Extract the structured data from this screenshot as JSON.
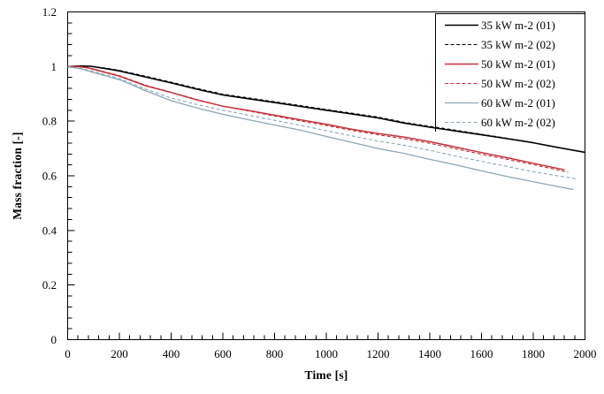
{
  "figure": {
    "background": "#ffffff",
    "frame_color": "#000000",
    "tick_color": "#000000",
    "text_color": "#000000"
  },
  "chart_data": {
    "type": "line",
    "title": "",
    "xlabel": "Time [s]",
    "ylabel": "Mass fraction [-]",
    "xlim": [
      0,
      2000
    ],
    "ylim": [
      0,
      1.2
    ],
    "x_major_tick_step": 200,
    "x_minor_tick_step": 40,
    "y_major_tick_step": 0.2,
    "y_minor_tick_step": 0.04,
    "x_tick_labels": [
      "0",
      "200",
      "400",
      "600",
      "800",
      "1000",
      "1200",
      "1400",
      "1600",
      "1800",
      "2000"
    ],
    "y_tick_labels": [
      "0",
      "0.2",
      "0.4",
      "0.6",
      "0.8",
      "1",
      "1.2"
    ],
    "grid": "off",
    "legend_position": "top-right-inside",
    "series": [
      {
        "name": "35 kW m-2 (01)",
        "color": "#000000",
        "style": "solid",
        "width": 1.6,
        "points": [
          [
            0,
            0.999
          ],
          [
            40,
            1.002
          ],
          [
            90,
            1.001
          ],
          [
            150,
            0.992
          ],
          [
            200,
            0.984
          ],
          [
            300,
            0.962
          ],
          [
            400,
            0.94
          ],
          [
            500,
            0.917
          ],
          [
            600,
            0.896
          ],
          [
            700,
            0.882
          ],
          [
            800,
            0.868
          ],
          [
            900,
            0.854
          ],
          [
            1000,
            0.84
          ],
          [
            1100,
            0.826
          ],
          [
            1200,
            0.812
          ],
          [
            1300,
            0.793
          ],
          [
            1400,
            0.778
          ],
          [
            1500,
            0.764
          ],
          [
            1600,
            0.75
          ],
          [
            1700,
            0.736
          ],
          [
            1800,
            0.721
          ],
          [
            1900,
            0.703
          ],
          [
            2000,
            0.686
          ]
        ]
      },
      {
        "name": "35 kW m-2 (02)",
        "color": "#000000",
        "style": "dashed",
        "width": 1.1,
        "points": [
          [
            0,
            0.999
          ],
          [
            40,
            1.001
          ],
          [
            90,
            1.0
          ],
          [
            150,
            0.994
          ],
          [
            200,
            0.986
          ],
          [
            300,
            0.965
          ],
          [
            400,
            0.943
          ],
          [
            500,
            0.92
          ],
          [
            600,
            0.899
          ],
          [
            700,
            0.885
          ],
          [
            800,
            0.871
          ],
          [
            900,
            0.857
          ],
          [
            1000,
            0.843
          ],
          [
            1100,
            0.829
          ],
          [
            1200,
            0.815
          ],
          [
            1300,
            0.796
          ],
          [
            1400,
            0.781
          ],
          [
            1500,
            0.767
          ],
          [
            1600,
            0.752
          ],
          [
            1700,
            0.737
          ],
          [
            1780,
            0.725
          ]
        ]
      },
      {
        "name": "50 kW m-2 (01)",
        "color": "#c3333b",
        "style": "solid",
        "width": 1.5,
        "points": [
          [
            0,
            0.999
          ],
          [
            40,
            1.0
          ],
          [
            80,
            0.995
          ],
          [
            150,
            0.977
          ],
          [
            200,
            0.965
          ],
          [
            300,
            0.93
          ],
          [
            400,
            0.905
          ],
          [
            500,
            0.878
          ],
          [
            600,
            0.855
          ],
          [
            700,
            0.839
          ],
          [
            800,
            0.822
          ],
          [
            900,
            0.805
          ],
          [
            1000,
            0.789
          ],
          [
            1100,
            0.77
          ],
          [
            1200,
            0.755
          ],
          [
            1300,
            0.742
          ],
          [
            1400,
            0.725
          ],
          [
            1500,
            0.705
          ],
          [
            1600,
            0.685
          ],
          [
            1700,
            0.666
          ],
          [
            1800,
            0.646
          ],
          [
            1920,
            0.622
          ]
        ]
      },
      {
        "name": "50 kW m-2 (02)",
        "color": "#c3333b",
        "style": "dashed",
        "width": 1.1,
        "points": [
          [
            0,
            0.999
          ],
          [
            40,
            1.0
          ],
          [
            80,
            0.996
          ],
          [
            150,
            0.979
          ],
          [
            200,
            0.967
          ],
          [
            300,
            0.932
          ],
          [
            400,
            0.906
          ],
          [
            500,
            0.879
          ],
          [
            600,
            0.855
          ],
          [
            700,
            0.837
          ],
          [
            800,
            0.819
          ],
          [
            900,
            0.801
          ],
          [
            1000,
            0.784
          ],
          [
            1100,
            0.766
          ],
          [
            1200,
            0.75
          ],
          [
            1300,
            0.736
          ],
          [
            1400,
            0.719
          ],
          [
            1500,
            0.699
          ],
          [
            1600,
            0.679
          ],
          [
            1700,
            0.66
          ],
          [
            1800,
            0.641
          ],
          [
            1935,
            0.613
          ]
        ]
      },
      {
        "name": "60 kW m-2 (01)",
        "color": "#8da6b6",
        "style": "solid",
        "width": 1.3,
        "points": [
          [
            0,
            0.999
          ],
          [
            50,
            0.992
          ],
          [
            100,
            0.978
          ],
          [
            200,
            0.952
          ],
          [
            300,
            0.912
          ],
          [
            400,
            0.875
          ],
          [
            500,
            0.848
          ],
          [
            600,
            0.825
          ],
          [
            700,
            0.805
          ],
          [
            800,
            0.786
          ],
          [
            900,
            0.767
          ],
          [
            1000,
            0.744
          ],
          [
            1100,
            0.722
          ],
          [
            1200,
            0.7
          ],
          [
            1300,
            0.682
          ],
          [
            1400,
            0.66
          ],
          [
            1500,
            0.64
          ],
          [
            1600,
            0.618
          ],
          [
            1700,
            0.597
          ],
          [
            1800,
            0.578
          ],
          [
            1955,
            0.55
          ]
        ]
      },
      {
        "name": "60 kW m-2 (02)",
        "color": "#8da6b6",
        "style": "dashed",
        "width": 1.1,
        "points": [
          [
            0,
            0.999
          ],
          [
            50,
            0.994
          ],
          [
            100,
            0.982
          ],
          [
            200,
            0.956
          ],
          [
            300,
            0.918
          ],
          [
            400,
            0.885
          ],
          [
            500,
            0.861
          ],
          [
            600,
            0.84
          ],
          [
            700,
            0.822
          ],
          [
            800,
            0.803
          ],
          [
            900,
            0.785
          ],
          [
            1000,
            0.765
          ],
          [
            1100,
            0.746
          ],
          [
            1200,
            0.727
          ],
          [
            1300,
            0.712
          ],
          [
            1400,
            0.693
          ],
          [
            1500,
            0.672
          ],
          [
            1600,
            0.653
          ],
          [
            1700,
            0.634
          ],
          [
            1800,
            0.615
          ],
          [
            1970,
            0.588
          ]
        ]
      }
    ]
  }
}
